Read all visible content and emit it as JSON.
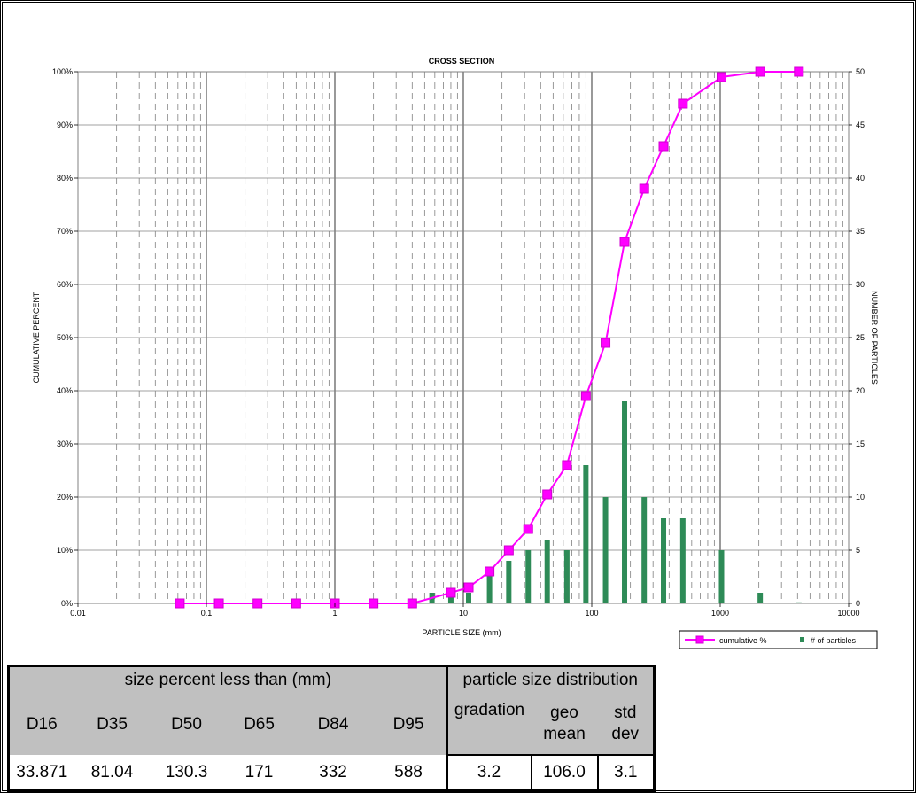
{
  "chart_data": {
    "type": "bar+line",
    "title": "CROSS SECTION",
    "xlabel": "PARTICLE SIZE (mm)",
    "ylabel": "CUMULATIVE PERCENT",
    "y2label": "NUMBER OF PARTICLES",
    "x_scale": "log",
    "xlim": [
      0.01,
      10000
    ],
    "ylim": [
      0,
      100
    ],
    "y2lim": [
      0,
      50
    ],
    "x_ticks": [
      "0.01",
      "0.1",
      "1",
      "10",
      "100",
      "1000",
      "10000"
    ],
    "y_ticks": [
      "0%",
      "10%",
      "20%",
      "30%",
      "40%",
      "50%",
      "60%",
      "70%",
      "80%",
      "90%",
      "100%"
    ],
    "y2_ticks": [
      "0",
      "5",
      "10",
      "15",
      "20",
      "25",
      "30",
      "35",
      "40",
      "45",
      "50"
    ],
    "grid": true,
    "legend_position": "bottom-right",
    "series": [
      {
        "name": "cumulative %",
        "type": "line",
        "color": "#ff00ff",
        "axis": "left",
        "x": [
          0.062,
          0.125,
          0.25,
          0.5,
          1,
          2,
          4,
          8,
          11,
          16,
          22.6,
          32,
          45,
          64,
          90,
          128,
          180,
          256,
          362,
          512,
          1024,
          2048,
          4096
        ],
        "y": [
          0,
          0,
          0,
          0,
          0,
          0,
          0,
          2,
          3,
          6,
          10,
          14,
          20.5,
          26,
          39,
          49,
          68,
          78,
          86,
          94,
          99,
          100,
          100
        ]
      },
      {
        "name": "# of particles",
        "type": "bar",
        "color": "#2e8b57",
        "axis": "right",
        "x": [
          5.7,
          8,
          11,
          16,
          22.6,
          32,
          45,
          64,
          90,
          128,
          180,
          256,
          362,
          512,
          1024,
          2048,
          4096
        ],
        "y": [
          1,
          1,
          1,
          3,
          4,
          5,
          6,
          5,
          13,
          10,
          19,
          10,
          8,
          8,
          5,
          1,
          0.1
        ]
      }
    ]
  },
  "table": {
    "left_header": "size percent less than (mm)",
    "right_header": "particle size distribution",
    "d_labels": [
      "D16",
      "D35",
      "D50",
      "D65",
      "D84",
      "D95"
    ],
    "d_values": [
      "33.871",
      "81.04",
      "130.3",
      "171",
      "332",
      "588"
    ],
    "gradation_label": "gradation",
    "geo_mean_label": [
      "geo",
      "mean"
    ],
    "std_dev_label": [
      "std",
      "dev"
    ],
    "gradation_value": "3.2",
    "geo_mean_value": "106.0",
    "std_dev_value": "3.1"
  }
}
